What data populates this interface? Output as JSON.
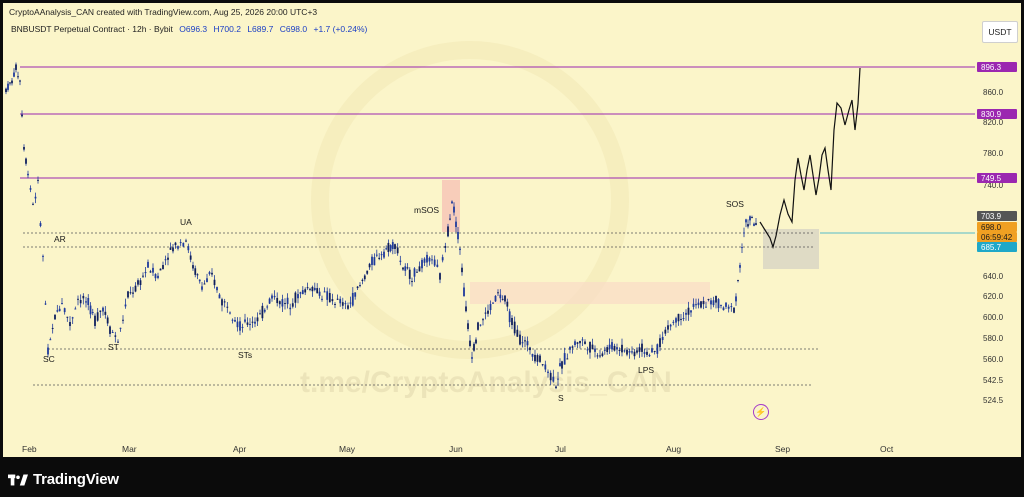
{
  "header": {
    "attribution": "CryptoAAnalysis_CAN created with TradingView.com, Aug 25, 2026 20:00 UTC+3"
  },
  "symbol": {
    "name": "BNBUSDT Perpetual Contract · 12h · Bybit",
    "open": "O696.3",
    "high": "H700.2",
    "low": "L689.7",
    "close": "C698.0",
    "change": "+1.7 (+0.24%)"
  },
  "currency": "USDT",
  "watermark": "t.me/CryptoAnalysis_CAN",
  "price_axis": {
    "ticks": [
      "860.0",
      "820.0",
      "780.0",
      "740.0",
      "640.0",
      "620.0",
      "600.0",
      "580.0",
      "560.0",
      "542.5",
      "524.5"
    ],
    "tags": [
      {
        "label": "896.3",
        "color": "#9b27b0"
      },
      {
        "label": "830.9",
        "color": "#9b27b0"
      },
      {
        "label": "749.5",
        "color": "#9b27b0"
      },
      {
        "label": "703.9",
        "color": "#555555"
      },
      {
        "label": "698.0",
        "color": "#f0a022"
      },
      {
        "label": "06:59:42",
        "color": "#f0a022"
      },
      {
        "label": "685.7",
        "color": "#1fa8c8"
      }
    ]
  },
  "time_axis": {
    "labels": [
      "Feb",
      "Mar",
      "Apr",
      "May",
      "Jun",
      "Jul",
      "Aug",
      "Sep",
      "Oct"
    ]
  },
  "annotations": [
    "AR",
    "UA",
    "mSOS",
    "SOS",
    "SC",
    "ST",
    "STs",
    "LPS",
    "S"
  ],
  "colors": {
    "background": "#fbf5c9",
    "candle": "#1e3a9c",
    "resistance": "#9b27b0",
    "accent": "#f0a022"
  },
  "branding": {
    "logo_text": "TradingView"
  }
}
